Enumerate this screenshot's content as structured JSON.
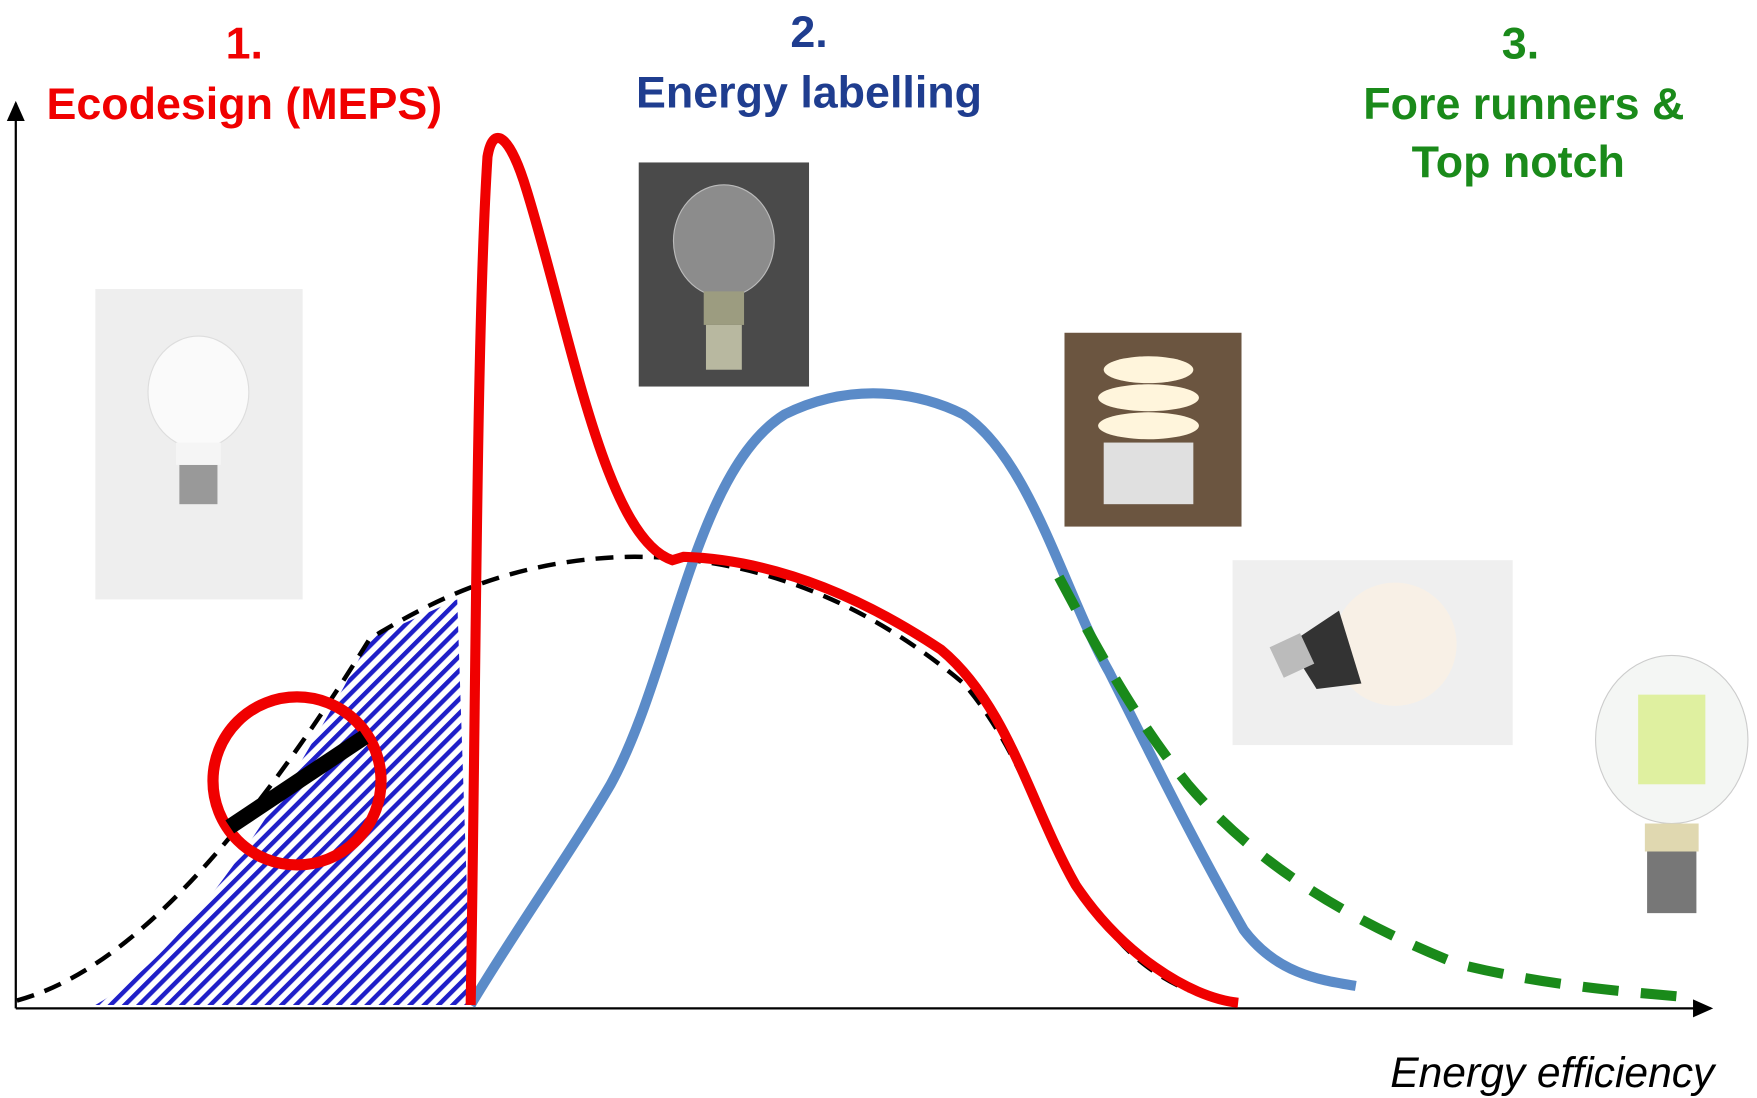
{
  "labels": [
    {
      "number": "1.",
      "lines": [
        "Ecodesign (MEPS)"
      ]
    },
    {
      "number": "2.",
      "lines": [
        "Energy labelling"
      ]
    },
    {
      "number": "3.",
      "lines": [
        "Fore runners &",
        "Top notch"
      ]
    }
  ],
  "x_axis_label": "Energy efficiency"
}
